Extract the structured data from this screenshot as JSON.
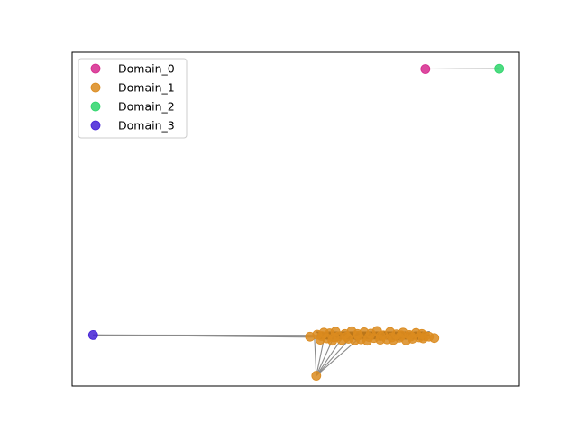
{
  "chart_data": {
    "type": "scatter",
    "xlim": [
      0,
      100
    ],
    "ylim": [
      0,
      100
    ],
    "grid": false,
    "legend_placement": "top-left",
    "edge_color": "#8a8a8a",
    "series": [
      {
        "name": "Domain_0",
        "color": "#d6298e",
        "points": [
          [
            79,
            95
          ]
        ]
      },
      {
        "name": "Domain_1",
        "color": "#db8b1f",
        "points": [
          [
            53.2,
            14.8
          ],
          [
            54.8,
            15.4
          ],
          [
            55.5,
            13.9
          ],
          [
            56.3,
            16.0
          ],
          [
            57.0,
            14.3
          ],
          [
            57.6,
            15.8
          ],
          [
            58.2,
            13.6
          ],
          [
            58.9,
            16.3
          ],
          [
            59.6,
            14.9
          ],
          [
            60.3,
            13.8
          ],
          [
            61.0,
            15.6
          ],
          [
            61.8,
            14.2
          ],
          [
            62.5,
            16.4
          ],
          [
            63.2,
            13.7
          ],
          [
            64.0,
            15.1
          ],
          [
            64.6,
            14.0
          ],
          [
            65.3,
            16.1
          ],
          [
            66.0,
            13.6
          ],
          [
            66.8,
            15.7
          ],
          [
            67.5,
            14.4
          ],
          [
            68.2,
            16.5
          ],
          [
            68.9,
            13.9
          ],
          [
            69.6,
            15.2
          ],
          [
            70.4,
            14.0
          ],
          [
            71.1,
            16.2
          ],
          [
            71.8,
            13.8
          ],
          [
            72.5,
            15.5
          ],
          [
            73.2,
            14.5
          ],
          [
            74.0,
            16.0
          ],
          [
            74.7,
            13.7
          ],
          [
            75.4,
            15.3
          ],
          [
            76.1,
            14.2
          ],
          [
            76.9,
            15.9
          ],
          [
            77.6,
            14.6
          ],
          [
            78.2,
            15.6
          ],
          [
            79.0,
            15.0
          ],
          [
            79.8,
            14.8
          ],
          [
            81.0,
            14.4
          ],
          [
            55.8,
            15.0
          ],
          [
            58.6,
            14.6
          ],
          [
            61.4,
            14.8
          ],
          [
            63.8,
            15.6
          ],
          [
            66.4,
            14.7
          ],
          [
            69.0,
            15.0
          ],
          [
            71.5,
            14.6
          ],
          [
            73.6,
            15.2
          ],
          [
            75.8,
            14.9
          ],
          [
            78.5,
            14.3
          ],
          [
            54.6,
            3.1
          ]
        ]
      },
      {
        "name": "Domain_2",
        "color": "#2ed56b",
        "points": [
          [
            95.5,
            95.1
          ]
        ]
      },
      {
        "name": "Domain_3",
        "color": "#4422d6",
        "points": [
          [
            4.7,
            15.3
          ]
        ]
      }
    ],
    "edges": [
      {
        "from": [
          79,
          95
        ],
        "to": [
          95.5,
          95.1
        ]
      },
      {
        "from": [
          4.7,
          15.3
        ],
        "to": [
          54.3,
          14.9
        ]
      },
      {
        "from": [
          4.7,
          15.3
        ],
        "to": [
          57.0,
          14.6
        ]
      },
      {
        "from": [
          4.7,
          15.3
        ],
        "to": [
          59.0,
          15.2
        ]
      },
      {
        "from": [
          4.7,
          15.3
        ],
        "to": [
          64.0,
          15.0
        ]
      },
      {
        "from": [
          54.6,
          3.1
        ],
        "to": [
          54.2,
          14.6
        ]
      },
      {
        "from": [
          54.6,
          3.1
        ],
        "to": [
          56.4,
          14.6
        ]
      },
      {
        "from": [
          54.6,
          3.1
        ],
        "to": [
          58.4,
          14.4
        ]
      },
      {
        "from": [
          54.6,
          3.1
        ],
        "to": [
          60.4,
          14.4
        ]
      },
      {
        "from": [
          54.6,
          3.1
        ],
        "to": [
          62.4,
          14.6
        ]
      },
      {
        "from": [
          54.6,
          3.1
        ],
        "to": [
          64.4,
          14.6
        ]
      }
    ],
    "dense_band": {
      "x": [
        54.0,
        80.0
      ],
      "y": 15.0
    }
  }
}
